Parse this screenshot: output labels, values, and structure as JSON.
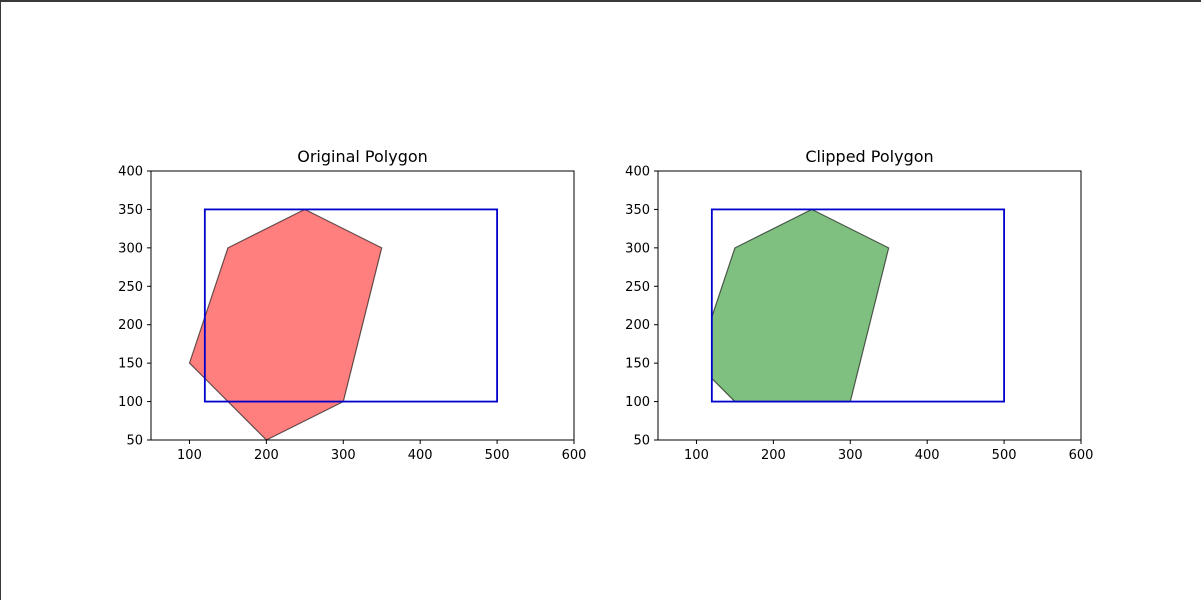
{
  "chart_data": [
    {
      "type": "polygon",
      "title": "Original Polygon",
      "xlim": [
        50,
        600
      ],
      "ylim": [
        50,
        400
      ],
      "xticks": [
        100,
        200,
        300,
        400,
        500,
        600
      ],
      "yticks": [
        50,
        100,
        150,
        200,
        250,
        300,
        350,
        400
      ],
      "grid": false,
      "polygon": {
        "points": [
          [
            100,
            150
          ],
          [
            150,
            300
          ],
          [
            250,
            350
          ],
          [
            350,
            300
          ],
          [
            300,
            100
          ],
          [
            200,
            50
          ]
        ],
        "fill": "#ff0000",
        "fill_opacity": 0.5,
        "edge_color": "#000000"
      },
      "clip_rect": {
        "x": [
          120,
          500
        ],
        "y": [
          100,
          350
        ],
        "color": "#0000cc"
      }
    },
    {
      "type": "polygon",
      "title": "Clipped Polygon",
      "xlim": [
        50,
        600
      ],
      "ylim": [
        50,
        400
      ],
      "xticks": [
        100,
        200,
        300,
        400,
        500,
        600
      ],
      "yticks": [
        50,
        100,
        150,
        200,
        250,
        300,
        350,
        400
      ],
      "grid": false,
      "polygon": {
        "points": [
          [
            120,
            210
          ],
          [
            150,
            300
          ],
          [
            250,
            350
          ],
          [
            350,
            300
          ],
          [
            300,
            100
          ],
          [
            150,
            100
          ],
          [
            120,
            130
          ]
        ],
        "fill": "#008000",
        "fill_opacity": 0.5,
        "edge_color": "#000000"
      },
      "clip_rect": {
        "x": [
          120,
          500
        ],
        "y": [
          100,
          350
        ],
        "color": "#0000cc"
      }
    }
  ]
}
